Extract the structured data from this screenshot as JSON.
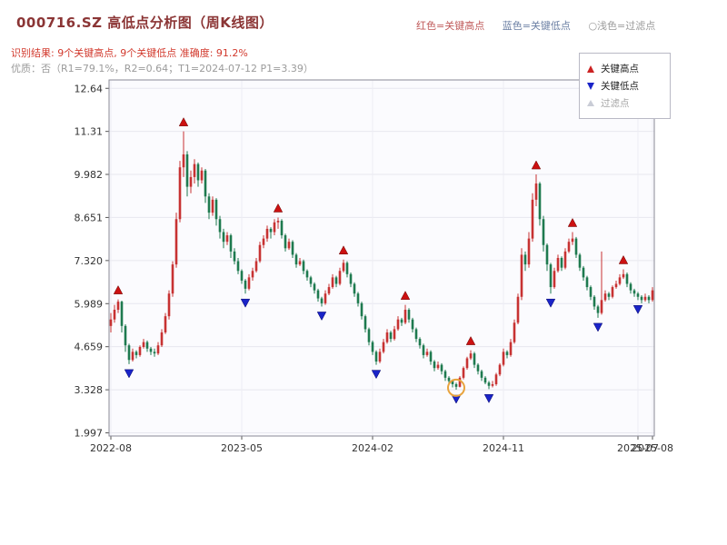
{
  "header": {
    "title": "000716.SZ 高低点分析图（周K线图）",
    "legend_top": [
      {
        "label": "红色=关键高点",
        "color": "#c05b5b"
      },
      {
        "label": "蓝色=关键低点",
        "color": "#6b7fa3"
      },
      {
        "label": "○浅色=过滤点",
        "color": "#9a9a9a"
      }
    ],
    "result_line": "识别结果: 9个关键高点, 9个关键低点  准确度: 91.2%",
    "quality_line": "优质：否（R1=79.1%，R2=0.64；T1=2024-07-12 P1=3.39）"
  },
  "legend_box": {
    "items": [
      {
        "label": "关键高点",
        "marker": "triangle-up",
        "color": "#cc2222"
      },
      {
        "label": "关键低点",
        "marker": "triangle-down",
        "color": "#1a24c8"
      },
      {
        "label": "过滤点",
        "marker": "triangle-light",
        "color": "#c9ccd6"
      }
    ]
  },
  "chart_data": {
    "type": "candlestick",
    "symbol": "000716.SZ",
    "period": "weekly",
    "title": "000716.SZ 高低点分析图（周K线图）",
    "ylim": [
      1.9,
      12.9
    ],
    "grid": true,
    "up_color": "#c73232",
    "down_color": "#1e7a4f",
    "key_high_color": "#cc1111",
    "key_low_color": "#1a24c8",
    "filter_circle_color": "#e8a33d",
    "y_ticks": [
      {
        "v": 1.997,
        "label": "1.997"
      },
      {
        "v": 3.328,
        "label": "3.328"
      },
      {
        "v": 4.659,
        "label": "4.659"
      },
      {
        "v": 5.989,
        "label": "5.989"
      },
      {
        "v": 7.32,
        "label": "7.320"
      },
      {
        "v": 8.651,
        "label": "8.651"
      },
      {
        "v": 9.982,
        "label": "9.982"
      },
      {
        "v": 11.31,
        "label": "11.31"
      },
      {
        "v": 12.64,
        "label": "12.64"
      }
    ],
    "x_ticks": [
      {
        "index": 0,
        "label": "2022-08"
      },
      {
        "index": 36,
        "label": "2023-05"
      },
      {
        "index": 72,
        "label": "2024-02"
      },
      {
        "index": 108,
        "label": "2024-11"
      },
      {
        "index": 145,
        "label": "2025-07"
      },
      {
        "index": 149,
        "label": "2025-08"
      }
    ],
    "key_highs": [
      {
        "index": 2,
        "price": 6.12
      },
      {
        "index": 20,
        "price": 11.31
      },
      {
        "index": 46,
        "price": 8.65
      },
      {
        "index": 64,
        "price": 7.35
      },
      {
        "index": 81,
        "price": 5.95
      },
      {
        "index": 99,
        "price": 4.55
      },
      {
        "index": 117,
        "price": 9.98
      },
      {
        "index": 127,
        "price": 8.2
      },
      {
        "index": 141,
        "price": 7.05
      }
    ],
    "key_lows": [
      {
        "index": 5,
        "price": 4.12
      },
      {
        "index": 37,
        "price": 6.3
      },
      {
        "index": 58,
        "price": 5.9
      },
      {
        "index": 73,
        "price": 4.1
      },
      {
        "index": 95,
        "price": 3.33
      },
      {
        "index": 104,
        "price": 3.35
      },
      {
        "index": 121,
        "price": 6.3
      },
      {
        "index": 134,
        "price": 5.55
      },
      {
        "index": 145,
        "price": 6.1
      }
    ],
    "filtered_points": [
      {
        "index": 95,
        "price": 3.39,
        "date": "2024-07-12",
        "circled": true
      }
    ],
    "candles": [
      [
        5.3,
        5.7,
        5.1,
        5.5
      ],
      [
        5.5,
        5.95,
        5.4,
        5.8
      ],
      [
        5.8,
        6.12,
        5.7,
        6.05
      ],
      [
        6.05,
        6.08,
        5.1,
        5.3
      ],
      [
        5.3,
        5.35,
        4.5,
        4.7
      ],
      [
        4.7,
        4.75,
        4.12,
        4.25
      ],
      [
        4.25,
        4.6,
        4.2,
        4.5
      ],
      [
        4.5,
        4.55,
        4.3,
        4.4
      ],
      [
        4.4,
        4.7,
        4.35,
        4.65
      ],
      [
        4.65,
        4.9,
        4.6,
        4.8
      ],
      [
        4.8,
        4.85,
        4.5,
        4.6
      ],
      [
        4.6,
        4.65,
        4.4,
        4.5
      ],
      [
        4.5,
        4.6,
        4.35,
        4.45
      ],
      [
        4.45,
        4.8,
        4.4,
        4.7
      ],
      [
        4.7,
        5.2,
        4.65,
        5.1
      ],
      [
        5.1,
        5.7,
        5.05,
        5.6
      ],
      [
        5.6,
        6.4,
        5.5,
        6.3
      ],
      [
        6.3,
        7.3,
        6.2,
        7.2
      ],
      [
        7.2,
        8.8,
        7.1,
        8.6
      ],
      [
        8.6,
        10.4,
        8.5,
        10.2
      ],
      [
        10.2,
        11.31,
        9.9,
        10.6
      ],
      [
        10.6,
        10.7,
        9.3,
        9.6
      ],
      [
        9.6,
        10.1,
        9.4,
        9.9
      ],
      [
        9.9,
        10.45,
        9.7,
        10.3
      ],
      [
        10.3,
        10.35,
        9.6,
        9.8
      ],
      [
        9.8,
        10.2,
        9.7,
        10.1
      ],
      [
        10.1,
        10.15,
        9.1,
        9.3
      ],
      [
        9.3,
        9.4,
        8.6,
        8.8
      ],
      [
        8.8,
        9.3,
        8.7,
        9.2
      ],
      [
        9.2,
        9.25,
        8.4,
        8.6
      ],
      [
        8.6,
        8.7,
        8.0,
        8.2
      ],
      [
        8.2,
        8.3,
        7.7,
        7.9
      ],
      [
        7.9,
        8.2,
        7.8,
        8.1
      ],
      [
        8.1,
        8.15,
        7.4,
        7.6
      ],
      [
        7.6,
        7.7,
        7.2,
        7.3
      ],
      [
        7.3,
        7.4,
        6.9,
        7.0
      ],
      [
        7.0,
        7.05,
        6.6,
        6.7
      ],
      [
        6.7,
        6.75,
        6.3,
        6.45
      ],
      [
        6.45,
        6.9,
        6.4,
        6.8
      ],
      [
        6.8,
        7.1,
        6.7,
        7.0
      ],
      [
        7.0,
        7.4,
        6.95,
        7.3
      ],
      [
        7.3,
        7.9,
        7.25,
        7.8
      ],
      [
        7.8,
        8.1,
        7.7,
        8.0
      ],
      [
        8.0,
        8.4,
        7.9,
        8.3
      ],
      [
        8.3,
        8.35,
        8.0,
        8.2
      ],
      [
        8.2,
        8.6,
        8.1,
        8.5
      ],
      [
        8.5,
        8.65,
        8.3,
        8.55
      ],
      [
        8.55,
        8.6,
        8.0,
        8.1
      ],
      [
        8.1,
        8.15,
        7.6,
        7.7
      ],
      [
        7.7,
        8.0,
        7.65,
        7.9
      ],
      [
        7.9,
        7.95,
        7.4,
        7.5
      ],
      [
        7.5,
        7.55,
        7.1,
        7.2
      ],
      [
        7.2,
        7.4,
        7.15,
        7.3
      ],
      [
        7.3,
        7.35,
        6.9,
        7.0
      ],
      [
        7.0,
        7.05,
        6.7,
        6.8
      ],
      [
        6.8,
        6.85,
        6.5,
        6.6
      ],
      [
        6.6,
        6.65,
        6.3,
        6.4
      ],
      [
        6.4,
        6.45,
        6.05,
        6.15
      ],
      [
        6.15,
        6.2,
        5.9,
        6.0
      ],
      [
        6.0,
        6.4,
        5.95,
        6.3
      ],
      [
        6.3,
        6.6,
        6.25,
        6.5
      ],
      [
        6.5,
        6.9,
        6.45,
        6.8
      ],
      [
        6.8,
        6.85,
        6.5,
        6.6
      ],
      [
        6.6,
        7.1,
        6.55,
        7.0
      ],
      [
        7.0,
        7.35,
        6.95,
        7.25
      ],
      [
        7.25,
        7.3,
        6.8,
        6.9
      ],
      [
        6.9,
        6.95,
        6.5,
        6.6
      ],
      [
        6.6,
        6.65,
        6.2,
        6.3
      ],
      [
        6.3,
        6.35,
        5.9,
        6.0
      ],
      [
        6.0,
        6.05,
        5.5,
        5.6
      ],
      [
        5.6,
        5.65,
        5.1,
        5.2
      ],
      [
        5.2,
        5.25,
        4.7,
        4.8
      ],
      [
        4.8,
        4.85,
        4.4,
        4.5
      ],
      [
        4.5,
        4.55,
        4.1,
        4.2
      ],
      [
        4.2,
        4.6,
        4.15,
        4.5
      ],
      [
        4.5,
        4.9,
        4.45,
        4.8
      ],
      [
        4.8,
        5.2,
        4.75,
        5.1
      ],
      [
        5.1,
        5.15,
        4.8,
        4.9
      ],
      [
        4.9,
        5.3,
        4.85,
        5.2
      ],
      [
        5.2,
        5.6,
        5.15,
        5.5
      ],
      [
        5.5,
        5.55,
        5.3,
        5.4
      ],
      [
        5.4,
        5.95,
        5.35,
        5.8
      ],
      [
        5.8,
        5.85,
        5.4,
        5.5
      ],
      [
        5.5,
        5.55,
        5.1,
        5.2
      ],
      [
        5.2,
        5.25,
        4.8,
        4.9
      ],
      [
        4.9,
        4.95,
        4.6,
        4.7
      ],
      [
        4.7,
        4.75,
        4.3,
        4.4
      ],
      [
        4.4,
        4.6,
        4.35,
        4.5
      ],
      [
        4.5,
        4.55,
        4.1,
        4.2
      ],
      [
        4.2,
        4.25,
        3.9,
        4.0
      ],
      [
        4.0,
        4.2,
        3.95,
        4.1
      ],
      [
        4.1,
        4.15,
        3.8,
        3.9
      ],
      [
        3.9,
        3.95,
        3.6,
        3.7
      ],
      [
        3.7,
        3.75,
        3.5,
        3.6
      ],
      [
        3.6,
        3.65,
        3.4,
        3.5
      ],
      [
        3.5,
        3.55,
        3.33,
        3.42
      ],
      [
        3.42,
        3.75,
        3.4,
        3.7
      ],
      [
        3.7,
        4.05,
        3.65,
        4.0
      ],
      [
        4.0,
        4.35,
        3.95,
        4.3
      ],
      [
        4.3,
        4.55,
        4.25,
        4.45
      ],
      [
        4.45,
        4.5,
        4.0,
        4.1
      ],
      [
        4.1,
        4.15,
        3.8,
        3.9
      ],
      [
        3.9,
        3.95,
        3.6,
        3.7
      ],
      [
        3.7,
        3.75,
        3.5,
        3.55
      ],
      [
        3.55,
        3.6,
        3.35,
        3.45
      ],
      [
        3.45,
        3.6,
        3.4,
        3.5
      ],
      [
        3.5,
        3.85,
        3.45,
        3.8
      ],
      [
        3.8,
        4.15,
        3.75,
        4.1
      ],
      [
        4.1,
        4.6,
        4.05,
        4.5
      ],
      [
        4.5,
        4.55,
        4.3,
        4.4
      ],
      [
        4.4,
        4.9,
        4.35,
        4.8
      ],
      [
        4.8,
        5.5,
        4.75,
        5.4
      ],
      [
        5.4,
        6.3,
        5.35,
        6.2
      ],
      [
        6.2,
        7.7,
        6.1,
        7.5
      ],
      [
        7.5,
        7.6,
        7.0,
        7.2
      ],
      [
        7.2,
        8.2,
        7.1,
        8.0
      ],
      [
        8.0,
        9.4,
        7.9,
        9.2
      ],
      [
        9.2,
        9.98,
        9.0,
        9.7
      ],
      [
        9.7,
        9.75,
        8.4,
        8.6
      ],
      [
        8.6,
        8.7,
        7.6,
        7.8
      ],
      [
        7.8,
        7.85,
        7.0,
        7.2
      ],
      [
        7.2,
        7.25,
        6.3,
        6.5
      ],
      [
        6.5,
        7.1,
        6.45,
        7.0
      ],
      [
        7.0,
        7.5,
        6.95,
        7.4
      ],
      [
        7.4,
        7.45,
        7.0,
        7.1
      ],
      [
        7.1,
        7.7,
        7.05,
        7.6
      ],
      [
        7.6,
        8.0,
        7.55,
        7.9
      ],
      [
        7.9,
        8.2,
        7.8,
        8.0
      ],
      [
        8.0,
        8.05,
        7.4,
        7.5
      ],
      [
        7.5,
        7.55,
        7.0,
        7.1
      ],
      [
        7.1,
        7.15,
        6.7,
        6.8
      ],
      [
        6.8,
        6.85,
        6.4,
        6.5
      ],
      [
        6.5,
        6.55,
        6.1,
        6.2
      ],
      [
        6.2,
        6.25,
        5.8,
        5.9
      ],
      [
        5.9,
        5.95,
        5.55,
        5.7
      ],
      [
        5.7,
        7.6,
        5.65,
        6.1
      ],
      [
        6.1,
        6.4,
        6.05,
        6.3
      ],
      [
        6.3,
        6.35,
        6.1,
        6.2
      ],
      [
        6.2,
        6.55,
        6.15,
        6.5
      ],
      [
        6.5,
        6.7,
        6.45,
        6.6
      ],
      [
        6.6,
        6.9,
        6.55,
        6.8
      ],
      [
        6.8,
        7.05,
        6.75,
        6.9
      ],
      [
        6.9,
        6.95,
        6.5,
        6.6
      ],
      [
        6.6,
        6.65,
        6.3,
        6.4
      ],
      [
        6.4,
        6.45,
        6.2,
        6.3
      ],
      [
        6.3,
        6.35,
        6.1,
        6.2
      ],
      [
        6.2,
        6.25,
        6.0,
        6.1
      ],
      [
        6.1,
        6.3,
        6.05,
        6.2
      ],
      [
        6.2,
        6.25,
        6.0,
        6.1
      ],
      [
        6.1,
        6.5,
        6.05,
        6.4
      ]
    ]
  }
}
